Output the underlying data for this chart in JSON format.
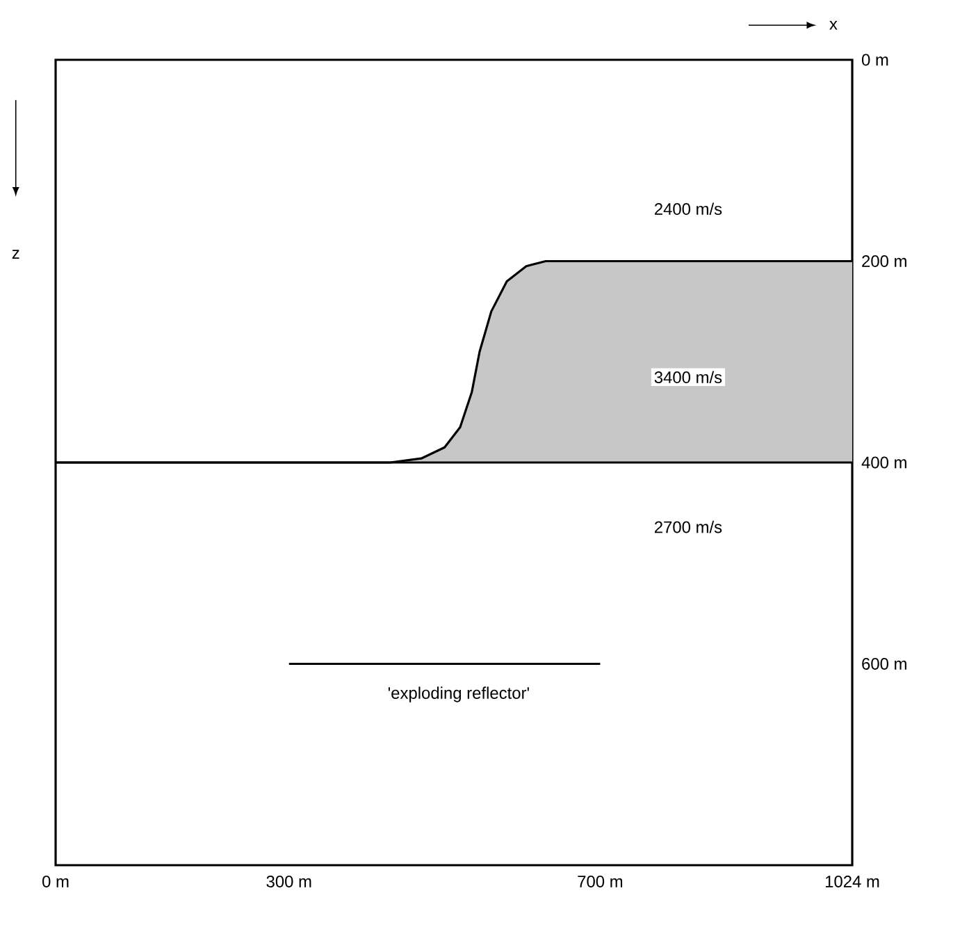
{
  "chart_data": {
    "type": "line",
    "xlabel": "x",
    "ylabel": "z",
    "xlim": [
      0,
      1024
    ],
    "ylim": [
      800,
      0
    ],
    "xticks": [
      {
        "value": 0,
        "label": "0 m"
      },
      {
        "value": 300,
        "label": "300 m"
      },
      {
        "value": 700,
        "label": "700 m"
      },
      {
        "value": 1024,
        "label": "1024 m"
      }
    ],
    "yticks": [
      {
        "value": 0,
        "label": "0 m"
      },
      {
        "value": 200,
        "label": "200 m"
      },
      {
        "value": 400,
        "label": "400 m"
      },
      {
        "value": 600,
        "label": "600 m"
      }
    ],
    "series": [
      {
        "color": "#000000",
        "x": [
          0,
          430,
          470,
          500,
          520,
          535,
          545,
          560,
          580,
          605,
          630,
          1024
        ],
        "values": [
          400,
          400,
          396,
          385,
          365,
          330,
          290,
          250,
          220,
          205,
          200,
          200
        ],
        "lower": [
          400,
          400,
          396,
          385,
          365,
          330,
          290,
          250,
          220,
          205,
          200,
          200
        ],
        "upper": [
          400,
          400,
          400,
          400,
          400,
          400,
          400,
          400,
          400,
          400,
          400,
          400
        ]
      },
      {
        "color": "#000000",
        "x": [
          300,
          700
        ],
        "values": [
          600,
          600
        ]
      }
    ],
    "ref_lines": [
      {
        "axis": "y",
        "value": 400,
        "color": "#000000"
      }
    ],
    "annotations": [
      "2400  m/s",
      "3400  m/s",
      "2700  m/s",
      "'exploding reflector'"
    ],
    "marker": "none",
    "line_style": "solid",
    "grid": false
  }
}
